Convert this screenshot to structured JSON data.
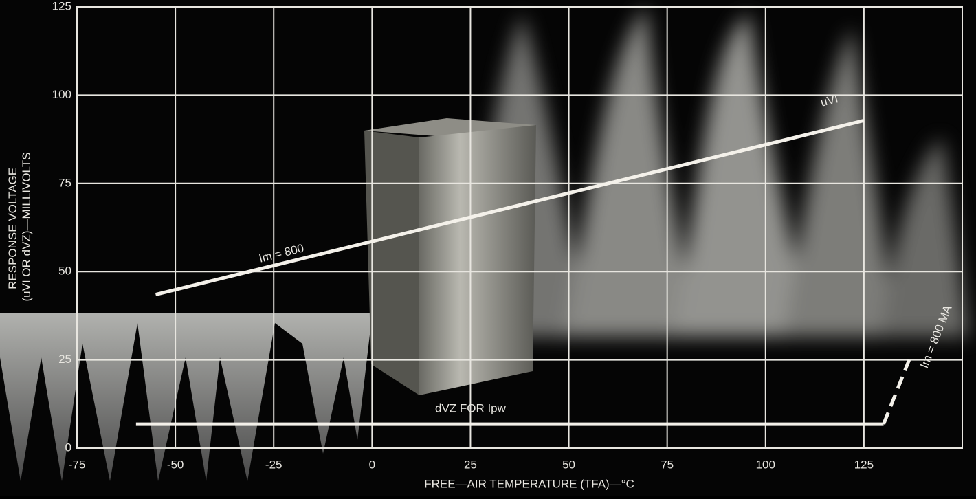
{
  "chart_data": {
    "type": "line",
    "x_label": "FREE—AIR TEMPERATURE (TFA)—°C",
    "y_label": [
      "RESPONSE VOLTAGE",
      "(uVI OR dVZ)—MILLIVOLTS"
    ],
    "xlim": [
      -75,
      150
    ],
    "xticks": [
      -75,
      -50,
      -25,
      0,
      25,
      50,
      75,
      100,
      125
    ],
    "ylim": [
      0,
      125
    ],
    "yticks": [
      0,
      25,
      50,
      75,
      100,
      125
    ],
    "grid": true,
    "series": [
      {
        "name": "uVI",
        "color": "#f4f1ea",
        "x": [
          -55,
          125
        ],
        "values": [
          43.5,
          92.8
        ],
        "dash": false
      },
      {
        "name": "dVZ FOR Ipw",
        "color": "#f4f1ea",
        "x": [
          -60,
          130
        ],
        "values": [
          6.8,
          6.8
        ],
        "dash": false
      },
      {
        "name": "Im = 800 MA",
        "color": "#f4f1ea",
        "x": [
          130,
          136.5
        ],
        "values": [
          6.8,
          25
        ],
        "dash": true
      }
    ],
    "annotations": [
      {
        "text": "Im = 800",
        "x": -23,
        "y": 55,
        "angle": -14
      }
    ]
  }
}
